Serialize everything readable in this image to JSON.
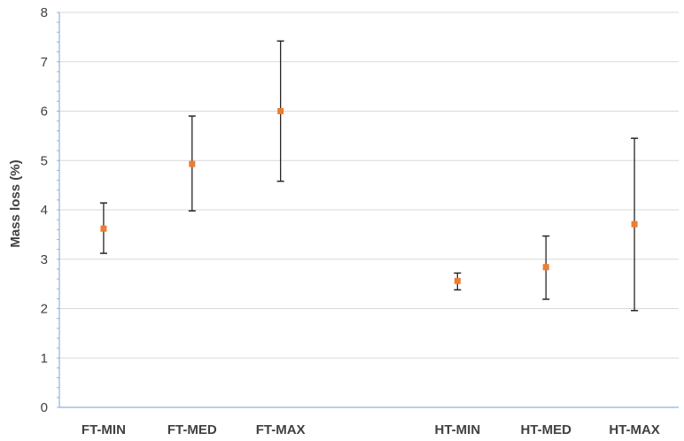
{
  "chart_data": {
    "type": "scatter",
    "title": "",
    "xlabel": "",
    "ylabel": "Mass loss (%)",
    "ylim": [
      0,
      8
    ],
    "yticks": [
      "0",
      "1",
      "2",
      "3",
      "4",
      "5",
      "6",
      "7",
      "8"
    ],
    "grid": true,
    "legend": "none",
    "categories": [
      "FT-MIN",
      "FT-MED",
      "FT-MAX",
      "",
      "HT-MIN",
      "HT-MED",
      "HT-MAX"
    ],
    "points": [
      {
        "label": "FT-MIN",
        "value": 3.62,
        "low": 3.12,
        "high": 4.14
      },
      {
        "label": "FT-MED",
        "value": 4.93,
        "low": 3.98,
        "high": 5.9
      },
      {
        "label": "FT-MAX",
        "value": 6.0,
        "low": 4.58,
        "high": 7.42
      },
      {
        "label": "HT-MIN",
        "value": 2.56,
        "low": 2.38,
        "high": 2.72
      },
      {
        "label": "HT-MED",
        "value": 2.84,
        "low": 2.19,
        "high": 3.47
      },
      {
        "label": "HT-MAX",
        "value": 3.71,
        "low": 1.96,
        "high": 5.45
      }
    ],
    "colors": {
      "marker": "#ed7d31",
      "errorbar": "#262626",
      "grid": "#d9d9d9",
      "axis": "#8fb4d9"
    }
  }
}
